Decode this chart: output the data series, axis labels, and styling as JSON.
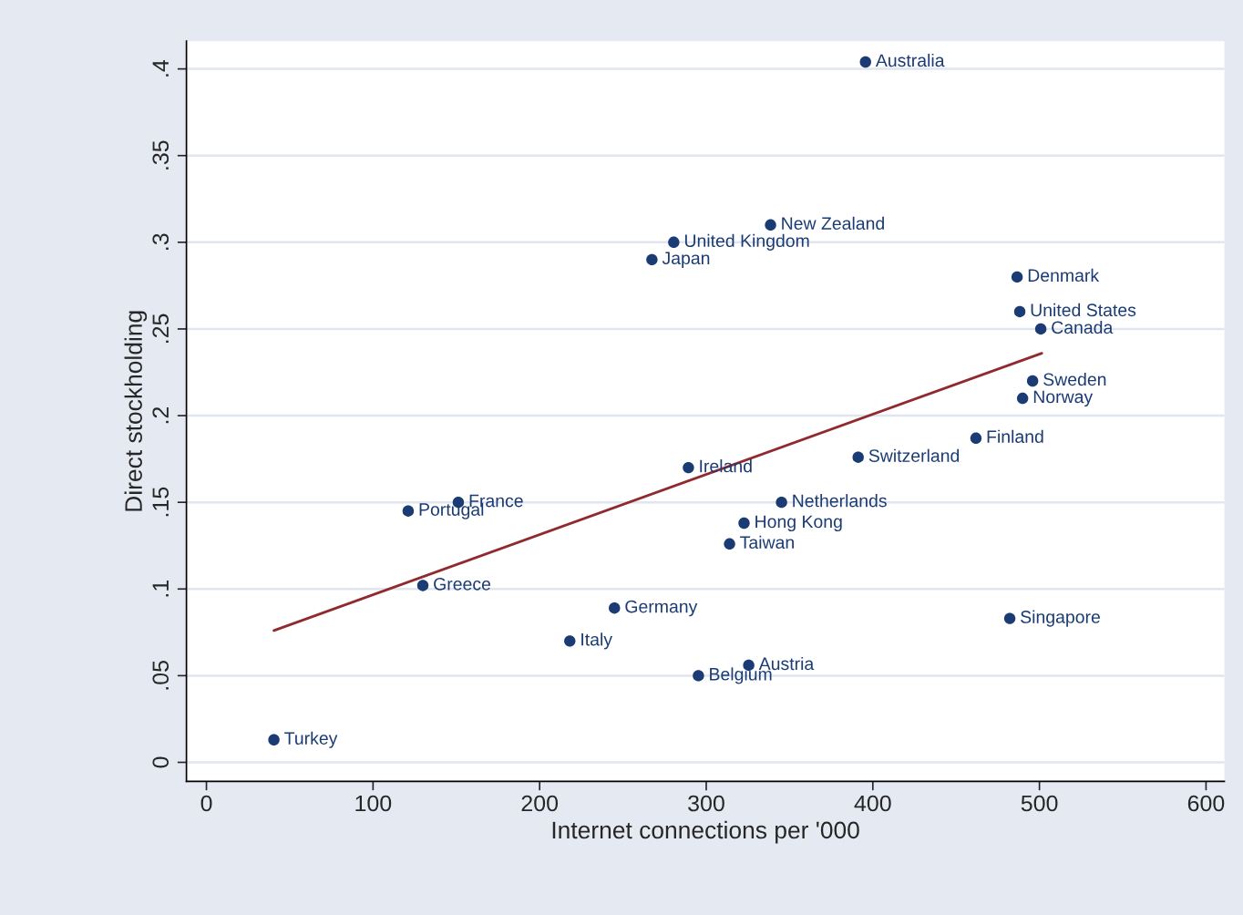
{
  "chart_data": {
    "type": "scatter",
    "xlabel": "Internet connections per '000",
    "ylabel": "Direct stockholding",
    "xlim": [
      -12,
      611
    ],
    "ylim": [
      -0.011,
      0.416
    ],
    "xticks": [
      0,
      100,
      200,
      300,
      400,
      500,
      600
    ],
    "yticks": [
      {
        "value": 0,
        "label": "0"
      },
      {
        "value": 0.05,
        "label": ".05"
      },
      {
        "value": 0.1,
        "label": ".1"
      },
      {
        "value": 0.15,
        "label": ".15"
      },
      {
        "value": 0.2,
        "label": ".2"
      },
      {
        "value": 0.25,
        "label": ".25"
      },
      {
        "value": 0.3,
        "label": ".3"
      },
      {
        "value": 0.35,
        "label": ".35"
      },
      {
        "value": 0.4,
        "label": ".4"
      }
    ],
    "grid": "y",
    "legend": false,
    "series": [
      {
        "marker": "circle",
        "color": "#1a3b73",
        "x": [
          395.6,
          338.6,
          280.5,
          267.4,
          486.6,
          488.2,
          500.8,
          495.9,
          489.9,
          461.9,
          391.2,
          289.3,
          151.2,
          121.1,
          345.2,
          322.7,
          314.0,
          129.9,
          244.9,
          482.2,
          218.1,
          325.5,
          295.3,
          40.5
        ],
        "values": [
          0.404,
          0.31,
          0.3,
          0.29,
          0.28,
          0.26,
          0.25,
          0.22,
          0.21,
          0.187,
          0.176,
          0.17,
          0.15,
          0.145,
          0.15,
          0.138,
          0.126,
          0.102,
          0.089,
          0.083,
          0.07,
          0.056,
          0.05,
          0.013
        ]
      },
      {
        "type": "line",
        "color": "#8f2a2e",
        "x": [
          40.5,
          501.4
        ],
        "values": [
          0.076,
          0.236
        ]
      }
    ],
    "annotations": [
      {
        "text": "Australia",
        "x": 395.6,
        "y": 0.404
      },
      {
        "text": "New Zealand",
        "x": 338.6,
        "y": 0.31
      },
      {
        "text": "United Kingdom",
        "x": 280.5,
        "y": 0.3
      },
      {
        "text": "Japan",
        "x": 267.4,
        "y": 0.29
      },
      {
        "text": "Denmark",
        "x": 486.6,
        "y": 0.28
      },
      {
        "text": "United States",
        "x": 488.2,
        "y": 0.26
      },
      {
        "text": "Canada",
        "x": 500.8,
        "y": 0.25
      },
      {
        "text": "Sweden",
        "x": 495.9,
        "y": 0.22
      },
      {
        "text": "Norway",
        "x": 489.9,
        "y": 0.21
      },
      {
        "text": "Finland",
        "x": 461.9,
        "y": 0.187
      },
      {
        "text": "Switzerland",
        "x": 391.2,
        "y": 0.176
      },
      {
        "text": "Ireland",
        "x": 289.3,
        "y": 0.17
      },
      {
        "text": "France",
        "x": 151.2,
        "y": 0.15
      },
      {
        "text": "Portugal",
        "x": 121.1,
        "y": 0.145
      },
      {
        "text": "Netherlands",
        "x": 345.2,
        "y": 0.15
      },
      {
        "text": "Hong Kong",
        "x": 322.7,
        "y": 0.138
      },
      {
        "text": "Taiwan",
        "x": 314.0,
        "y": 0.126
      },
      {
        "text": "Greece",
        "x": 129.9,
        "y": 0.102
      },
      {
        "text": "Germany",
        "x": 244.9,
        "y": 0.089
      },
      {
        "text": "Singapore",
        "x": 482.2,
        "y": 0.083
      },
      {
        "text": "Italy",
        "x": 218.1,
        "y": 0.07
      },
      {
        "text": "Austria",
        "x": 325.5,
        "y": 0.056
      },
      {
        "text": "Belgium",
        "x": 295.3,
        "y": 0.05
      },
      {
        "text": "Turkey",
        "x": 40.5,
        "y": 0.013
      }
    ]
  }
}
